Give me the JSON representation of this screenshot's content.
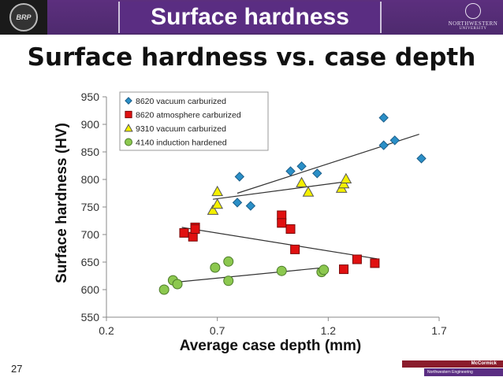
{
  "header": {
    "title": "Surface hardness",
    "logo_left_text": "BRP",
    "logo_right_line1": "NORTHWESTERN",
    "logo_right_line2": "UNIVERSITY"
  },
  "slide": {
    "title": "Surface hardness vs. case depth",
    "page_number": "27"
  },
  "footer": {
    "line1": "McCormick",
    "line2": "Northwestern Engineering"
  },
  "colors": {
    "purple": "#5a2d82",
    "diamond": "#2a8fc7",
    "square": "#e01010",
    "triangle": "#f4f000",
    "circle": "#8cc84f"
  },
  "chart_data": {
    "type": "scatter",
    "title": "",
    "xlabel": "Average case depth (mm)",
    "ylabel": "Surface hardness (HV)",
    "xlim": [
      0.2,
      1.7
    ],
    "ylim": [
      550,
      950
    ],
    "xticks": [
      "0.2",
      "0.7",
      "1.2",
      "1.7"
    ],
    "yticks": [
      "550",
      "600",
      "650",
      "700",
      "750",
      "800",
      "850",
      "900",
      "950"
    ],
    "legend_position": "top-left",
    "grid": false,
    "series": [
      {
        "name": "8620 vacuum carburized",
        "marker": "diamond",
        "points": [
          [
            0.8,
            805
          ],
          [
            0.79,
            758
          ],
          [
            0.85,
            752
          ],
          [
            1.03,
            815
          ],
          [
            1.08,
            824
          ],
          [
            1.15,
            811
          ],
          [
            1.45,
            912
          ],
          [
            1.45,
            862
          ],
          [
            1.5,
            871
          ],
          [
            1.62,
            838
          ]
        ],
        "trend": [
          [
            0.79,
            775
          ],
          [
            1.61,
            882
          ]
        ]
      },
      {
        "name": "8620 atmosphere carburized",
        "marker": "square",
        "points": [
          [
            0.55,
            703
          ],
          [
            0.59,
            696
          ],
          [
            0.6,
            713
          ],
          [
            0.6,
            710
          ],
          [
            0.99,
            735
          ],
          [
            0.99,
            721
          ],
          [
            1.03,
            710
          ],
          [
            1.05,
            673
          ],
          [
            1.27,
            637
          ],
          [
            1.33,
            655
          ],
          [
            1.41,
            648
          ]
        ],
        "trend": [
          [
            0.54,
            713
          ],
          [
            1.42,
            656
          ]
        ]
      },
      {
        "name": "9310 vacuum carburized",
        "marker": "triangle",
        "points": [
          [
            0.68,
            744
          ],
          [
            0.7,
            755
          ],
          [
            0.7,
            778
          ],
          [
            1.08,
            794
          ],
          [
            1.11,
            777
          ],
          [
            1.26,
            784
          ],
          [
            1.27,
            792
          ],
          [
            1.28,
            801
          ]
        ],
        "trend": [
          [
            0.68,
            764
          ],
          [
            1.3,
            797
          ]
        ]
      },
      {
        "name": "4140 induction hardened",
        "marker": "circle",
        "points": [
          [
            0.46,
            600
          ],
          [
            0.5,
            617
          ],
          [
            0.52,
            610
          ],
          [
            0.69,
            640
          ],
          [
            0.75,
            651
          ],
          [
            0.75,
            616
          ],
          [
            0.99,
            634
          ],
          [
            1.17,
            632
          ],
          [
            1.18,
            636
          ]
        ],
        "trend": [
          [
            0.5,
            613
          ],
          [
            1.18,
            640
          ]
        ]
      }
    ]
  }
}
